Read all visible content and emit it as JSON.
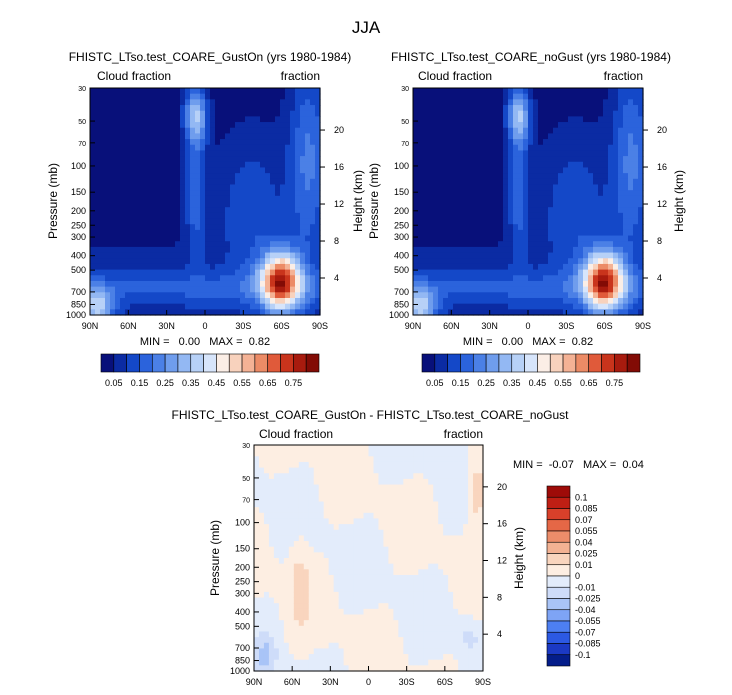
{
  "page_title": "JJA",
  "colors": {
    "seq": [
      "#08107a",
      "#0b2ba3",
      "#1448c8",
      "#2b63dc",
      "#4b80e6",
      "#6f9ded",
      "#93b8f3",
      "#b7d1f7",
      "#d7e5fb",
      "#fbeee6",
      "#f8d2bd",
      "#f4b295",
      "#ec8b66",
      "#e05a3a",
      "#c9341c",
      "#a81b0e",
      "#820b05"
    ],
    "div": [
      "#041d8a",
      "#1b39c4",
      "#2c59e3",
      "#4d7ff2",
      "#7ea4f5",
      "#a9c4f7",
      "#cedcf9",
      "#e3ecfb",
      "#fdeee2",
      "#f9d5be",
      "#f3b293",
      "#ec8d6a",
      "#e56746",
      "#d8402a",
      "#bf1f14",
      "#9e0b08"
    ]
  },
  "chart_data": [
    {
      "id": "panel1",
      "type": "heatmap",
      "title": "FHISTC_LTso.test_COARE_GustOn (yrs 1980-1984)",
      "left_label": "Cloud fraction",
      "right_label": "fraction",
      "ylabel": "Pressure (mb)",
      "ylabel_right": "Height (km)",
      "x_ticks": [
        "90N",
        "60N",
        "30N",
        "0",
        "30S",
        "60S",
        "90S"
      ],
      "x_values": [
        90,
        60,
        30,
        0,
        -30,
        -60,
        -90
      ],
      "y_ticks": [
        "30",
        "50",
        "70",
        "100",
        "150",
        "200",
        "250",
        "300",
        "400",
        "500",
        "700",
        "850",
        "1000"
      ],
      "y_values": [
        30,
        50,
        70,
        100,
        150,
        200,
        250,
        300,
        400,
        500,
        700,
        850,
        1000
      ],
      "height_ticks": [
        "20",
        "16",
        "12",
        "8",
        "4"
      ],
      "height_values": [
        20,
        16,
        12,
        8,
        4
      ],
      "stats": "MIN =   0.00   MAX =  0.82",
      "colorbar": {
        "orientation": "horizontal",
        "labels": [
          "0.05",
          "0.15",
          "0.25",
          "0.35",
          "0.45",
          "0.55",
          "0.65",
          "0.75"
        ],
        "levels": [
          0.05,
          0.1,
          0.15,
          0.2,
          0.25,
          0.3,
          0.35,
          0.4,
          0.45,
          0.5,
          0.55,
          0.6,
          0.65,
          0.7,
          0.75,
          0.8
        ]
      }
    },
    {
      "id": "panel2",
      "type": "heatmap",
      "title": "FHISTC_LTso.test_COARE_noGust (yrs 1980-1984)",
      "left_label": "Cloud fraction",
      "right_label": "fraction",
      "ylabel": "Pressure (mb)",
      "ylabel_right": "Height (km)",
      "x_ticks": [
        "90N",
        "60N",
        "30N",
        "0",
        "30S",
        "60S",
        "90S"
      ],
      "x_values": [
        90,
        60,
        30,
        0,
        -30,
        -60,
        -90
      ],
      "y_ticks": [
        "30",
        "50",
        "70",
        "100",
        "150",
        "200",
        "250",
        "300",
        "400",
        "500",
        "700",
        "850",
        "1000"
      ],
      "y_values": [
        30,
        50,
        70,
        100,
        150,
        200,
        250,
        300,
        400,
        500,
        700,
        850,
        1000
      ],
      "height_ticks": [
        "20",
        "16",
        "12",
        "8",
        "4"
      ],
      "height_values": [
        20,
        16,
        12,
        8,
        4
      ],
      "stats": "MIN =   0.00   MAX =  0.82",
      "colorbar": {
        "orientation": "horizontal",
        "labels": [
          "0.05",
          "0.15",
          "0.25",
          "0.35",
          "0.45",
          "0.55",
          "0.65",
          "0.75"
        ],
        "levels": [
          0.05,
          0.1,
          0.15,
          0.2,
          0.25,
          0.3,
          0.35,
          0.4,
          0.45,
          0.5,
          0.55,
          0.6,
          0.65,
          0.7,
          0.75,
          0.8
        ]
      }
    },
    {
      "id": "panel3",
      "type": "heatmap",
      "title": "FHISTC_LTso.test_COARE_GustOn - FHISTC_LTso.test_COARE_noGust",
      "left_label": "Cloud fraction",
      "right_label": "fraction",
      "ylabel": "Pressure (mb)",
      "ylabel_right": "Height (km)",
      "x_ticks": [
        "90N",
        "60N",
        "30N",
        "0",
        "30S",
        "60S",
        "90S"
      ],
      "x_values": [
        90,
        60,
        30,
        0,
        -30,
        -60,
        -90
      ],
      "y_ticks": [
        "30",
        "50",
        "70",
        "100",
        "150",
        "200",
        "250",
        "300",
        "400",
        "500",
        "700",
        "850",
        "1000"
      ],
      "y_values": [
        30,
        50,
        70,
        100,
        150,
        200,
        250,
        300,
        400,
        500,
        700,
        850,
        1000
      ],
      "height_ticks": [
        "20",
        "16",
        "12",
        "8",
        "4"
      ],
      "height_values": [
        20,
        16,
        12,
        8,
        4
      ],
      "stats": "MIN =  -0.07   MAX =  0.04",
      "colorbar": {
        "orientation": "vertical",
        "labels": [
          "0.1",
          "0.085",
          "0.07",
          "0.055",
          "0.04",
          "0.025",
          "0.01",
          "0",
          "-0.01",
          "-0.025",
          "-0.04",
          "-0.055",
          "-0.07",
          "-0.085",
          "-0.1"
        ],
        "levels": [
          0.1,
          0.085,
          0.07,
          0.055,
          0.04,
          0.025,
          0.01,
          0,
          -0.01,
          -0.025,
          -0.04,
          -0.055,
          -0.07,
          -0.085,
          -0.1
        ]
      }
    }
  ]
}
